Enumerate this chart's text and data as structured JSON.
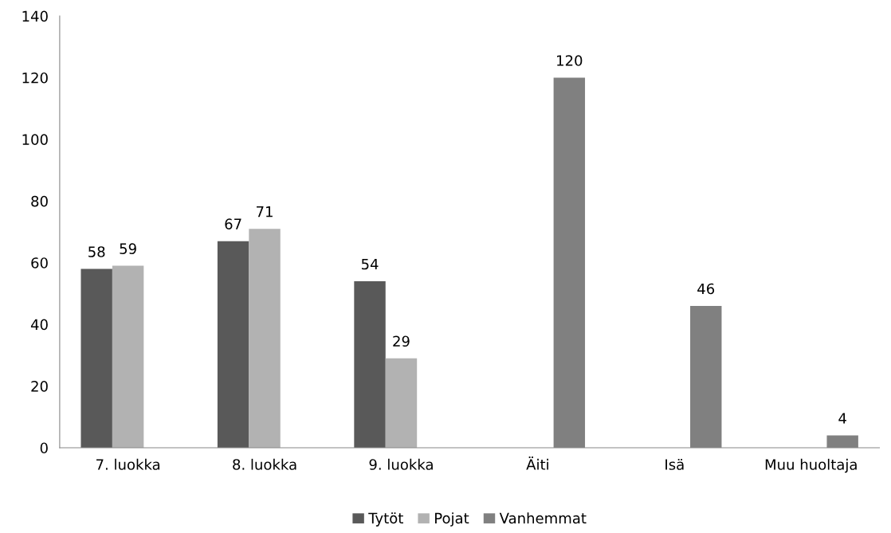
{
  "chart_data": {
    "type": "bar",
    "categories": [
      "7. luokka",
      "8. luokka",
      "9. luokka",
      "Äiti",
      "Isä",
      "Muu huoltaja"
    ],
    "series": [
      {
        "name": "Tytöt",
        "color": "#595959",
        "values": [
          58,
          67,
          54,
          null,
          null,
          null
        ]
      },
      {
        "name": "Pojat",
        "color": "#b2b2b2",
        "values": [
          59,
          71,
          29,
          null,
          null,
          null
        ]
      },
      {
        "name": "Vanhemmat",
        "color": "#808080",
        "values": [
          null,
          null,
          null,
          120,
          46,
          4
        ]
      }
    ],
    "ylim": [
      0,
      140
    ],
    "yticks": [
      0,
      20,
      40,
      60,
      80,
      100,
      120,
      140
    ],
    "grid": false,
    "legend": "bottom",
    "data_labels": true
  }
}
